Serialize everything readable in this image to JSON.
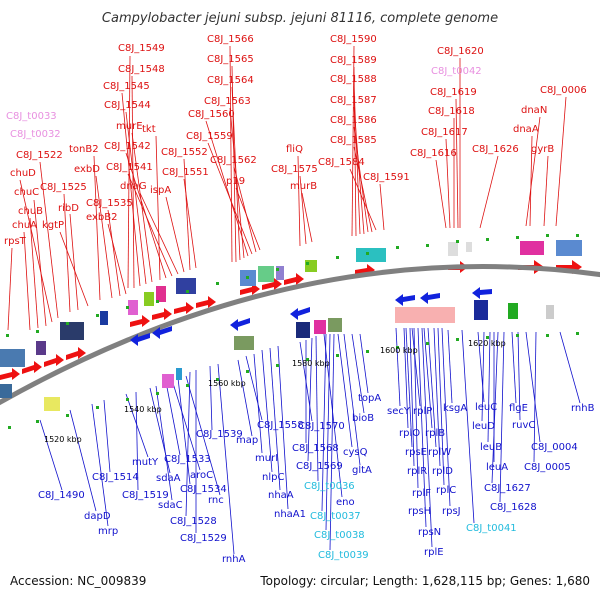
{
  "title": "Campylobacter jejuni subsp. jejuni 81116, complete genome",
  "footer": {
    "accession": "Accession: NC_009839",
    "summary": "Topology: circular; Length: 1,628,115 bp; Genes: 1,680"
  },
  "colors": {
    "forward_label": "#dd1111",
    "reverse_label": "#1111cc",
    "forward_trna": "#e890e0",
    "reverse_trna": "#22bbdd",
    "backbone": "#808080",
    "forward_arrow": "#ee1111",
    "reverse_arrow": "#1122dd",
    "tick_mark": "#22aa22"
  },
  "ticks": [
    "1520 kbp",
    "1540 kbp",
    "1560 kbp",
    "1580 kbp",
    "1600 kbp",
    "1620 kbp"
  ],
  "forward_labels": [
    "C8J_t0033",
    "C8J_t0032",
    "C8J_1522",
    "chuD",
    "chuC",
    "chuB",
    "chuA",
    "rpsT",
    "C8J_1525",
    "ribD",
    "kgtP",
    "tonB2",
    "exbD",
    "C8J_1535",
    "exbB2",
    "C8J_1549",
    "C8J_1548",
    "C8J_1545",
    "C8J_1544",
    "murE",
    "tkt",
    "C8J_1542",
    "C8J_1541",
    "dnaG",
    "ispA",
    "C8J_1552",
    "C8J_1551",
    "C8J_1566",
    "C8J_1565",
    "C8J_1564",
    "C8J_1563",
    "C8J_1560",
    "C8J_1559",
    "C8J_1562",
    "p19",
    "fliQ",
    "C8J_1575",
    "murB",
    "C8J_1590",
    "C8J_1589",
    "C8J_1588",
    "C8J_1587",
    "C8J_1586",
    "C8J_1585",
    "C8J_1584",
    "C8J_1591",
    "C8J_1620",
    "C8J_t0042",
    "C8J_1619",
    "C8J_1618",
    "C8J_1617",
    "C8J_1616",
    "C8J_1626",
    "dnaN",
    "C8J_0006",
    "dnaA",
    "gyrB"
  ],
  "reverse_labels": [
    "C8J_1490",
    "dapD",
    "mrp",
    "C8J_1514",
    "mutY",
    "C8J_1519",
    "sdaA",
    "sdaC",
    "C8J_1533",
    "aroC",
    "C8J_1534",
    "rnc",
    "C8J_1528",
    "C8J_1529",
    "C8J_1539",
    "rnhA",
    "map",
    "C8J_1558",
    "murI",
    "nlpC",
    "nhaA",
    "nhaA1",
    "C8J_1570",
    "C8J_1568",
    "C8J_1569",
    "C8J_t0036",
    "eno",
    "C8J_t0037",
    "C8J_t0038",
    "C8J_t0039",
    "cysQ",
    "gltA",
    "bioB",
    "topA",
    "secY",
    "rplP",
    "rplO",
    "rplB",
    "rpsE",
    "rplW",
    "rplR",
    "rplD",
    "rpsH",
    "rplF",
    "rplC",
    "rpsN",
    "rpsJ",
    "rplE",
    "ksgA",
    "C8J_t0041",
    "leuC",
    "leuD",
    "leuB",
    "leuA",
    "C8J_1627",
    "C8J_1628",
    "flgE",
    "ruvC",
    "C8J_0004",
    "C8J_0005",
    "rnhB"
  ]
}
